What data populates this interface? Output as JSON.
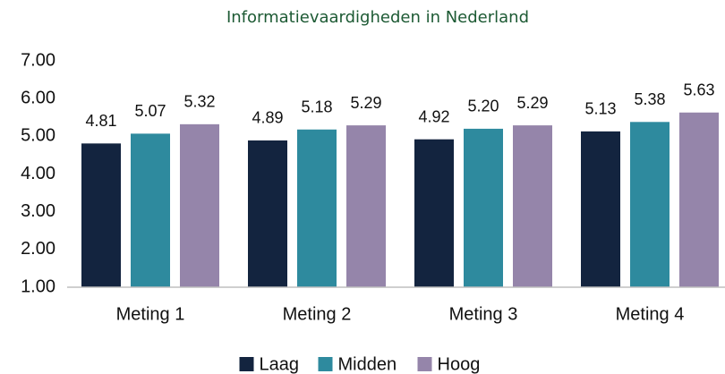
{
  "chart_data": {
    "type": "bar",
    "title": "Informatievaardigheden in Nederland",
    "categories": [
      "Meting 1",
      "Meting 2",
      "Meting 3",
      "Meting 4"
    ],
    "series": [
      {
        "name": "Laag",
        "color": "#13243f",
        "values": [
          4.81,
          4.89,
          4.92,
          5.13
        ],
        "value_labels": [
          "4.81",
          "4.89",
          "4.92",
          "5.13"
        ]
      },
      {
        "name": "Midden",
        "color": "#2e8a9e",
        "values": [
          5.07,
          5.18,
          5.2,
          5.38
        ],
        "value_labels": [
          "5.07",
          "5.18",
          "5.20",
          "5.38"
        ]
      },
      {
        "name": "Hoog",
        "color": "#9585aa",
        "values": [
          5.32,
          5.29,
          5.29,
          5.63
        ],
        "value_labels": [
          "5.32",
          "5.29",
          "5.29",
          "5.63"
        ]
      }
    ],
    "ylim": [
      1,
      7
    ],
    "yticks": [
      {
        "value": 1,
        "label": "1.00"
      },
      {
        "value": 2,
        "label": "2.00"
      },
      {
        "value": 3,
        "label": "3.00"
      },
      {
        "value": 4,
        "label": "4.00"
      },
      {
        "value": 5,
        "label": "5.00"
      },
      {
        "value": 6,
        "label": "6.00"
      },
      {
        "value": 7,
        "label": "7.00"
      }
    ],
    "grid": false
  }
}
